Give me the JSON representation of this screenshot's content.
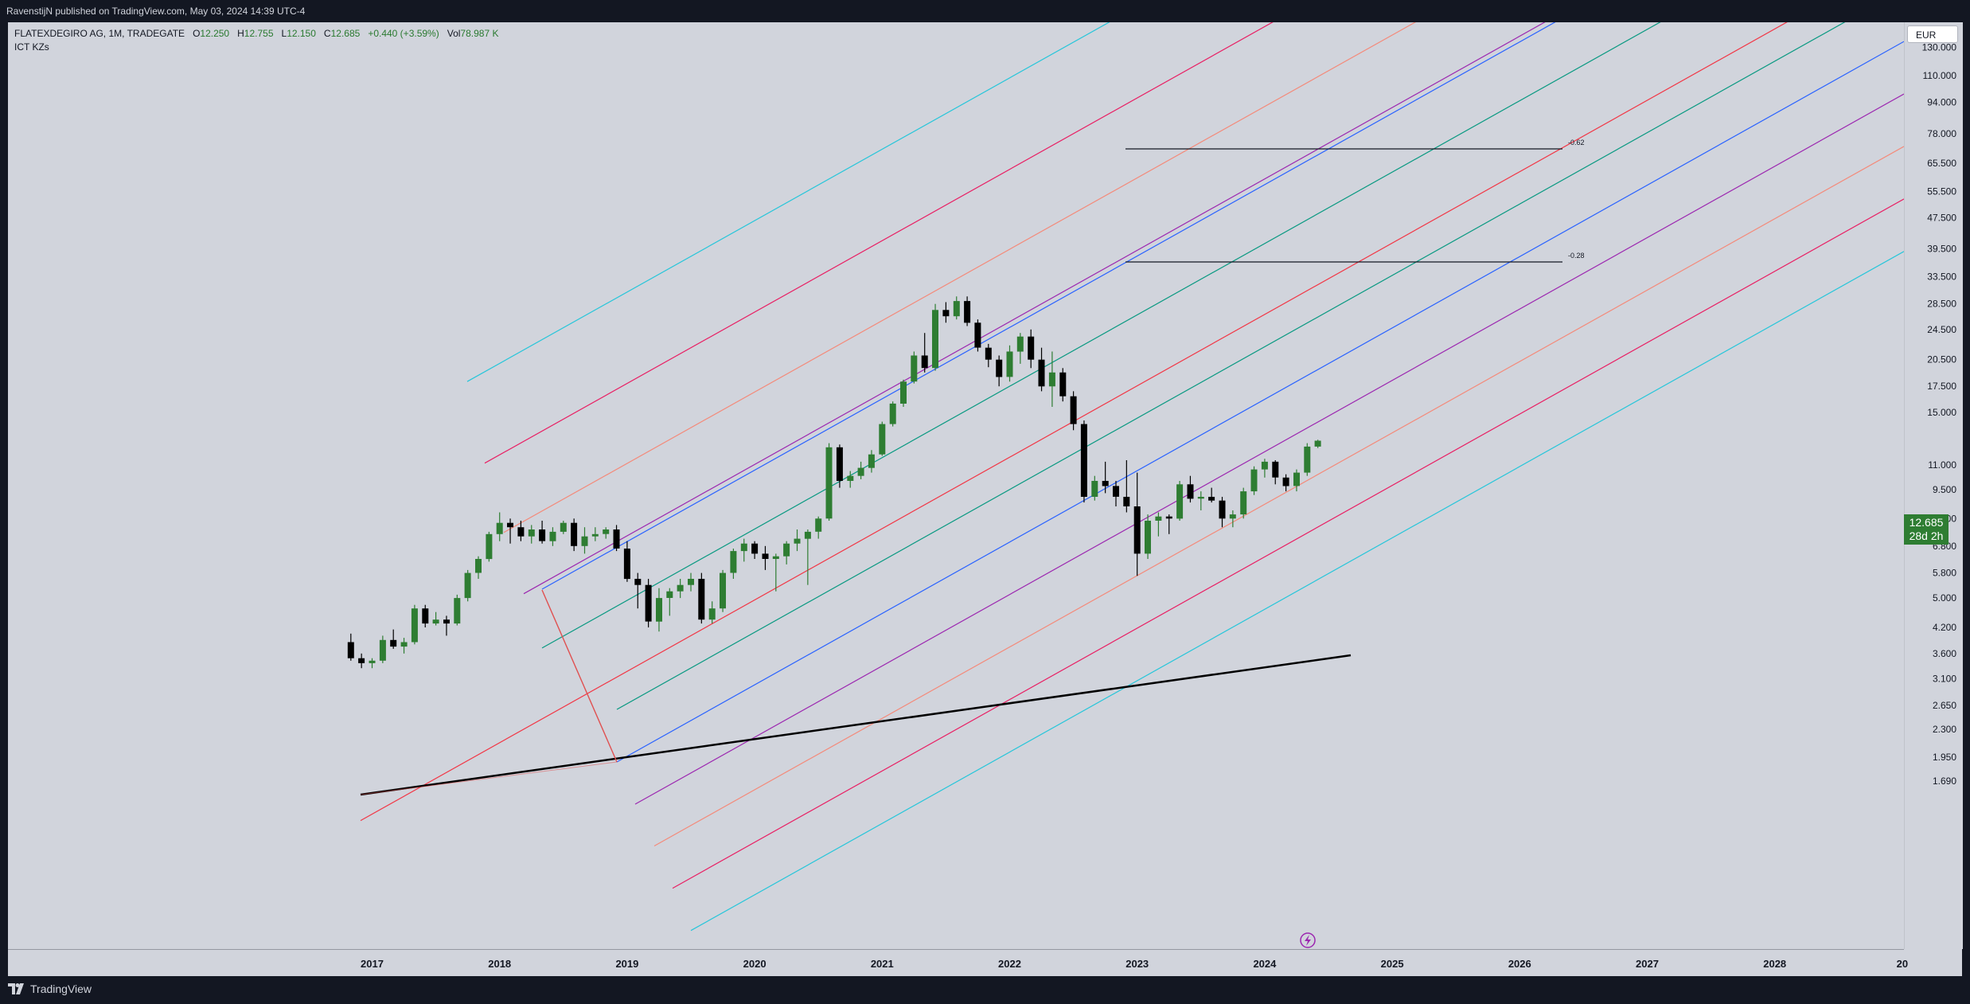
{
  "header": {
    "publisher_text": "RavenstijN published on TradingView.com, May 03, 2024 14:39 UTC-4"
  },
  "legend": {
    "symbol": "FLATEXDEGIRO AG, 1M, TRADEGATE",
    "o_label": "O",
    "o_value": "12.250",
    "h_label": "H",
    "h_value": "12.755",
    "l_label": "L",
    "l_value": "12.150",
    "c_label": "C",
    "c_value": "12.685",
    "change": "+0.440 (+3.59%)",
    "vol_label": "Vol",
    "vol_value": "78.987 K",
    "indicator": "ICT KZs"
  },
  "currency_badge": "EUR",
  "last_price": {
    "value": "12.685",
    "countdown": "28d 2h"
  },
  "footer": {
    "brand": "TradingView"
  },
  "chart_data": {
    "type": "candlestick",
    "y_scale": "log",
    "ylim": [
      1.5,
      150
    ],
    "price_ticks": [
      "130.000",
      "110.000",
      "94.000",
      "78.000",
      "65.500",
      "55.500",
      "47.500",
      "39.500",
      "33.500",
      "28.500",
      "24.500",
      "20.500",
      "17.500",
      "15.000",
      "11.000",
      "9.500",
      "8.000",
      "6.800",
      "5.800",
      "5.000",
      "4.200",
      "3.600",
      "3.100",
      "2.650",
      "2.300",
      "1.950",
      "1.690"
    ],
    "time_ticks": [
      "2017",
      "2018",
      "2019",
      "2020",
      "2021",
      "2022",
      "2023",
      "2024",
      "2025",
      "2026",
      "2027",
      "2028",
      "20"
    ],
    "level_labels": [
      "-0.62",
      "-0.28"
    ],
    "candles": [
      {
        "d": "2016-11",
        "o": 3.85,
        "h": 4.05,
        "l": 3.45,
        "c": 3.5
      },
      {
        "d": "2016-12",
        "o": 3.5,
        "h": 3.6,
        "l": 3.3,
        "c": 3.4
      },
      {
        "d": "2017-01",
        "o": 3.4,
        "h": 3.5,
        "l": 3.3,
        "c": 3.45
      },
      {
        "d": "2017-02",
        "o": 3.45,
        "h": 4.0,
        "l": 3.4,
        "c": 3.9
      },
      {
        "d": "2017-03",
        "o": 3.9,
        "h": 4.15,
        "l": 3.7,
        "c": 3.75
      },
      {
        "d": "2017-04",
        "o": 3.75,
        "h": 3.95,
        "l": 3.6,
        "c": 3.85
      },
      {
        "d": "2017-05",
        "o": 3.85,
        "h": 4.8,
        "l": 3.8,
        "c": 4.7
      },
      {
        "d": "2017-06",
        "o": 4.7,
        "h": 4.8,
        "l": 4.2,
        "c": 4.3
      },
      {
        "d": "2017-07",
        "o": 4.3,
        "h": 4.6,
        "l": 4.25,
        "c": 4.4
      },
      {
        "d": "2017-08",
        "o": 4.4,
        "h": 4.5,
        "l": 4.0,
        "c": 4.3
      },
      {
        "d": "2017-09",
        "o": 4.3,
        "h": 5.1,
        "l": 4.25,
        "c": 5.0
      },
      {
        "d": "2017-10",
        "o": 5.0,
        "h": 5.9,
        "l": 4.9,
        "c": 5.8
      },
      {
        "d": "2017-11",
        "o": 5.8,
        "h": 6.4,
        "l": 5.6,
        "c": 6.3
      },
      {
        "d": "2017-12",
        "o": 6.3,
        "h": 7.4,
        "l": 6.2,
        "c": 7.3
      },
      {
        "d": "2018-01",
        "o": 7.3,
        "h": 8.3,
        "l": 7.0,
        "c": 7.8
      },
      {
        "d": "2018-02",
        "o": 7.8,
        "h": 8.0,
        "l": 6.9,
        "c": 7.6
      },
      {
        "d": "2018-03",
        "o": 7.6,
        "h": 7.9,
        "l": 7.0,
        "c": 7.2
      },
      {
        "d": "2018-04",
        "o": 7.2,
        "h": 7.7,
        "l": 6.9,
        "c": 7.5
      },
      {
        "d": "2018-05",
        "o": 7.5,
        "h": 7.9,
        "l": 6.9,
        "c": 7.0
      },
      {
        "d": "2018-06",
        "o": 7.0,
        "h": 7.6,
        "l": 6.8,
        "c": 7.4
      },
      {
        "d": "2018-07",
        "o": 7.4,
        "h": 7.9,
        "l": 7.3,
        "c": 7.8
      },
      {
        "d": "2018-08",
        "o": 7.8,
        "h": 8.0,
        "l": 6.6,
        "c": 6.8
      },
      {
        "d": "2018-09",
        "o": 6.8,
        "h": 7.6,
        "l": 6.5,
        "c": 7.2
      },
      {
        "d": "2018-10",
        "o": 7.2,
        "h": 7.6,
        "l": 7.0,
        "c": 7.3
      },
      {
        "d": "2018-11",
        "o": 7.3,
        "h": 7.6,
        "l": 7.1,
        "c": 7.5
      },
      {
        "d": "2018-12",
        "o": 7.5,
        "h": 7.7,
        "l": 6.6,
        "c": 6.7
      },
      {
        "d": "2019-01",
        "o": 6.7,
        "h": 7.0,
        "l": 5.5,
        "c": 5.6
      },
      {
        "d": "2019-02",
        "o": 5.6,
        "h": 5.8,
        "l": 4.7,
        "c": 5.4
      },
      {
        "d": "2019-03",
        "o": 5.4,
        "h": 5.6,
        "l": 4.2,
        "c": 4.35
      },
      {
        "d": "2019-04",
        "o": 4.35,
        "h": 5.3,
        "l": 4.1,
        "c": 5.0
      },
      {
        "d": "2019-05",
        "o": 5.0,
        "h": 5.3,
        "l": 4.5,
        "c": 5.2
      },
      {
        "d": "2019-06",
        "o": 5.2,
        "h": 5.6,
        "l": 5.0,
        "c": 5.4
      },
      {
        "d": "2019-07",
        "o": 5.4,
        "h": 5.8,
        "l": 5.2,
        "c": 5.6
      },
      {
        "d": "2019-08",
        "o": 5.6,
        "h": 5.8,
        "l": 4.3,
        "c": 4.4
      },
      {
        "d": "2019-09",
        "o": 4.4,
        "h": 4.9,
        "l": 4.3,
        "c": 4.7
      },
      {
        "d": "2019-10",
        "o": 4.7,
        "h": 5.9,
        "l": 4.6,
        "c": 5.8
      },
      {
        "d": "2019-11",
        "o": 5.8,
        "h": 6.7,
        "l": 5.6,
        "c": 6.6
      },
      {
        "d": "2019-12",
        "o": 6.6,
        "h": 7.1,
        "l": 6.2,
        "c": 6.9
      },
      {
        "d": "2020-01",
        "o": 6.9,
        "h": 7.0,
        "l": 6.3,
        "c": 6.5
      },
      {
        "d": "2020-02",
        "o": 6.5,
        "h": 6.8,
        "l": 5.9,
        "c": 6.3
      },
      {
        "d": "2020-03",
        "o": 6.3,
        "h": 6.5,
        "l": 5.2,
        "c": 6.4
      },
      {
        "d": "2020-04",
        "o": 6.4,
        "h": 7.0,
        "l": 6.1,
        "c": 6.9
      },
      {
        "d": "2020-05",
        "o": 6.9,
        "h": 7.5,
        "l": 6.6,
        "c": 7.1
      },
      {
        "d": "2020-06",
        "o": 7.1,
        "h": 7.5,
        "l": 5.4,
        "c": 7.4
      },
      {
        "d": "2020-07",
        "o": 7.4,
        "h": 8.1,
        "l": 7.1,
        "c": 8.0
      },
      {
        "d": "2020-08",
        "o": 8.0,
        "h": 12.5,
        "l": 7.9,
        "c": 12.2
      },
      {
        "d": "2020-09",
        "o": 12.2,
        "h": 12.4,
        "l": 9.6,
        "c": 10.0
      },
      {
        "d": "2020-10",
        "o": 10.0,
        "h": 10.6,
        "l": 9.6,
        "c": 10.3
      },
      {
        "d": "2020-11",
        "o": 10.3,
        "h": 11.2,
        "l": 10.1,
        "c": 10.8
      },
      {
        "d": "2020-12",
        "o": 10.8,
        "h": 12.0,
        "l": 10.5,
        "c": 11.7
      },
      {
        "d": "2021-01",
        "o": 11.7,
        "h": 14.2,
        "l": 11.6,
        "c": 14.0
      },
      {
        "d": "2021-02",
        "o": 14.0,
        "h": 16.0,
        "l": 13.8,
        "c": 15.8
      },
      {
        "d": "2021-03",
        "o": 15.8,
        "h": 18.2,
        "l": 15.5,
        "c": 18.0
      },
      {
        "d": "2021-04",
        "o": 18.0,
        "h": 21.5,
        "l": 17.8,
        "c": 21.0
      },
      {
        "d": "2021-05",
        "o": 21.0,
        "h": 24.0,
        "l": 19.0,
        "c": 19.5
      },
      {
        "d": "2021-06",
        "o": 19.5,
        "h": 28.5,
        "l": 19.2,
        "c": 27.5
      },
      {
        "d": "2021-07",
        "o": 27.5,
        "h": 28.8,
        "l": 25.5,
        "c": 26.5
      },
      {
        "d": "2021-08",
        "o": 26.5,
        "h": 29.8,
        "l": 26.0,
        "c": 29.0
      },
      {
        "d": "2021-09",
        "o": 29.0,
        "h": 29.8,
        "l": 25.0,
        "c": 25.5
      },
      {
        "d": "2021-10",
        "o": 25.5,
        "h": 26.0,
        "l": 21.5,
        "c": 22.0
      },
      {
        "d": "2021-11",
        "o": 22.0,
        "h": 22.5,
        "l": 19.6,
        "c": 20.5
      },
      {
        "d": "2021-12",
        "o": 20.5,
        "h": 21.0,
        "l": 17.5,
        "c": 18.5
      },
      {
        "d": "2022-01",
        "o": 18.5,
        "h": 22.3,
        "l": 18.0,
        "c": 21.5
      },
      {
        "d": "2022-02",
        "o": 21.5,
        "h": 24.0,
        "l": 20.0,
        "c": 23.5
      },
      {
        "d": "2022-03",
        "o": 23.5,
        "h": 24.5,
        "l": 19.5,
        "c": 20.5
      },
      {
        "d": "2022-04",
        "o": 20.5,
        "h": 22.0,
        "l": 17.0,
        "c": 17.5
      },
      {
        "d": "2022-05",
        "o": 17.5,
        "h": 21.5,
        "l": 15.5,
        "c": 19.0
      },
      {
        "d": "2022-06",
        "o": 19.0,
        "h": 19.5,
        "l": 16.0,
        "c": 16.5
      },
      {
        "d": "2022-07",
        "o": 16.5,
        "h": 17.0,
        "l": 13.5,
        "c": 14.0
      },
      {
        "d": "2022-08",
        "o": 14.0,
        "h": 14.3,
        "l": 8.8,
        "c": 9.1
      },
      {
        "d": "2022-09",
        "o": 9.1,
        "h": 10.3,
        "l": 8.9,
        "c": 10.0
      },
      {
        "d": "2022-10",
        "o": 10.0,
        "h": 11.2,
        "l": 9.3,
        "c": 9.7
      },
      {
        "d": "2022-11",
        "o": 9.7,
        "h": 10.0,
        "l": 8.6,
        "c": 9.1
      },
      {
        "d": "2022-12",
        "o": 9.1,
        "h": 11.3,
        "l": 8.3,
        "c": 8.6
      },
      {
        "d": "2023-01",
        "o": 8.6,
        "h": 10.5,
        "l": 5.7,
        "c": 6.5
      },
      {
        "d": "2023-02",
        "o": 6.5,
        "h": 8.2,
        "l": 6.3,
        "c": 7.9
      },
      {
        "d": "2023-03",
        "o": 7.9,
        "h": 8.3,
        "l": 7.2,
        "c": 8.1
      },
      {
        "d": "2023-04",
        "o": 8.1,
        "h": 8.2,
        "l": 7.3,
        "c": 8.0
      },
      {
        "d": "2023-05",
        "o": 8.0,
        "h": 10.0,
        "l": 7.9,
        "c": 9.8
      },
      {
        "d": "2023-06",
        "o": 9.8,
        "h": 10.3,
        "l": 8.8,
        "c": 9.0
      },
      {
        "d": "2023-07",
        "o": 9.0,
        "h": 9.4,
        "l": 8.4,
        "c": 9.1
      },
      {
        "d": "2023-08",
        "o": 9.1,
        "h": 9.6,
        "l": 8.8,
        "c": 8.9
      },
      {
        "d": "2023-09",
        "o": 8.9,
        "h": 9.1,
        "l": 7.6,
        "c": 8.0
      },
      {
        "d": "2023-10",
        "o": 8.0,
        "h": 8.4,
        "l": 7.6,
        "c": 8.2
      },
      {
        "d": "2023-11",
        "o": 8.2,
        "h": 9.6,
        "l": 8.0,
        "c": 9.4
      },
      {
        "d": "2023-12",
        "o": 9.4,
        "h": 10.9,
        "l": 9.2,
        "c": 10.7
      },
      {
        "d": "2024-01",
        "o": 10.7,
        "h": 11.4,
        "l": 10.2,
        "c": 11.2
      },
      {
        "d": "2024-02",
        "o": 11.2,
        "h": 11.3,
        "l": 9.8,
        "c": 10.2
      },
      {
        "d": "2024-03",
        "o": 10.2,
        "h": 10.4,
        "l": 9.4,
        "c": 9.7
      },
      {
        "d": "2024-04",
        "o": 9.7,
        "h": 10.7,
        "l": 9.4,
        "c": 10.5
      },
      {
        "d": "2024-05",
        "o": 10.5,
        "h": 12.5,
        "l": 10.3,
        "c": 12.25
      },
      {
        "d": "2024-06",
        "o": 12.25,
        "h": 12.755,
        "l": 12.15,
        "c": 12.685
      }
    ]
  }
}
